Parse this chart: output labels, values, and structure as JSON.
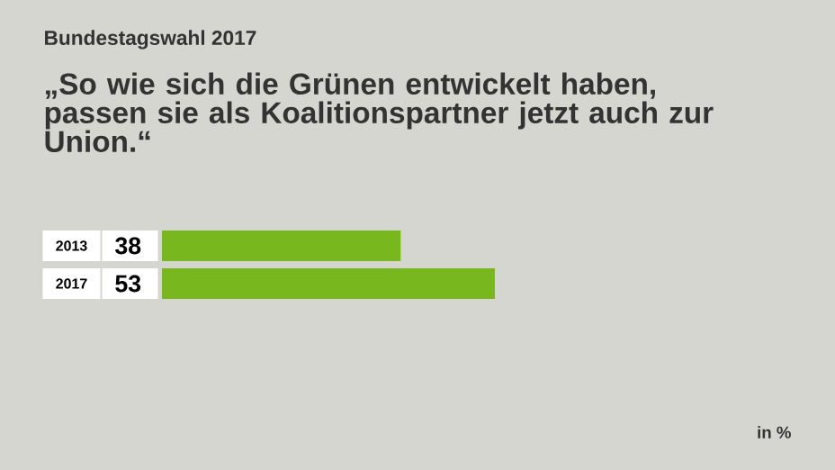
{
  "chart_data": {
    "type": "bar",
    "orientation": "horizontal",
    "title": "Bundestagswahl 2017",
    "subtitle": "„So wie sich die Grünen entwickelt haben, passen sie als Koalitionspartner jetzt auch zur Union.“",
    "categories": [
      "2013",
      "2017"
    ],
    "values": [
      38,
      53
    ],
    "color": "#78b81e",
    "data_labels": true,
    "annotations": [
      "in %"
    ]
  }
}
